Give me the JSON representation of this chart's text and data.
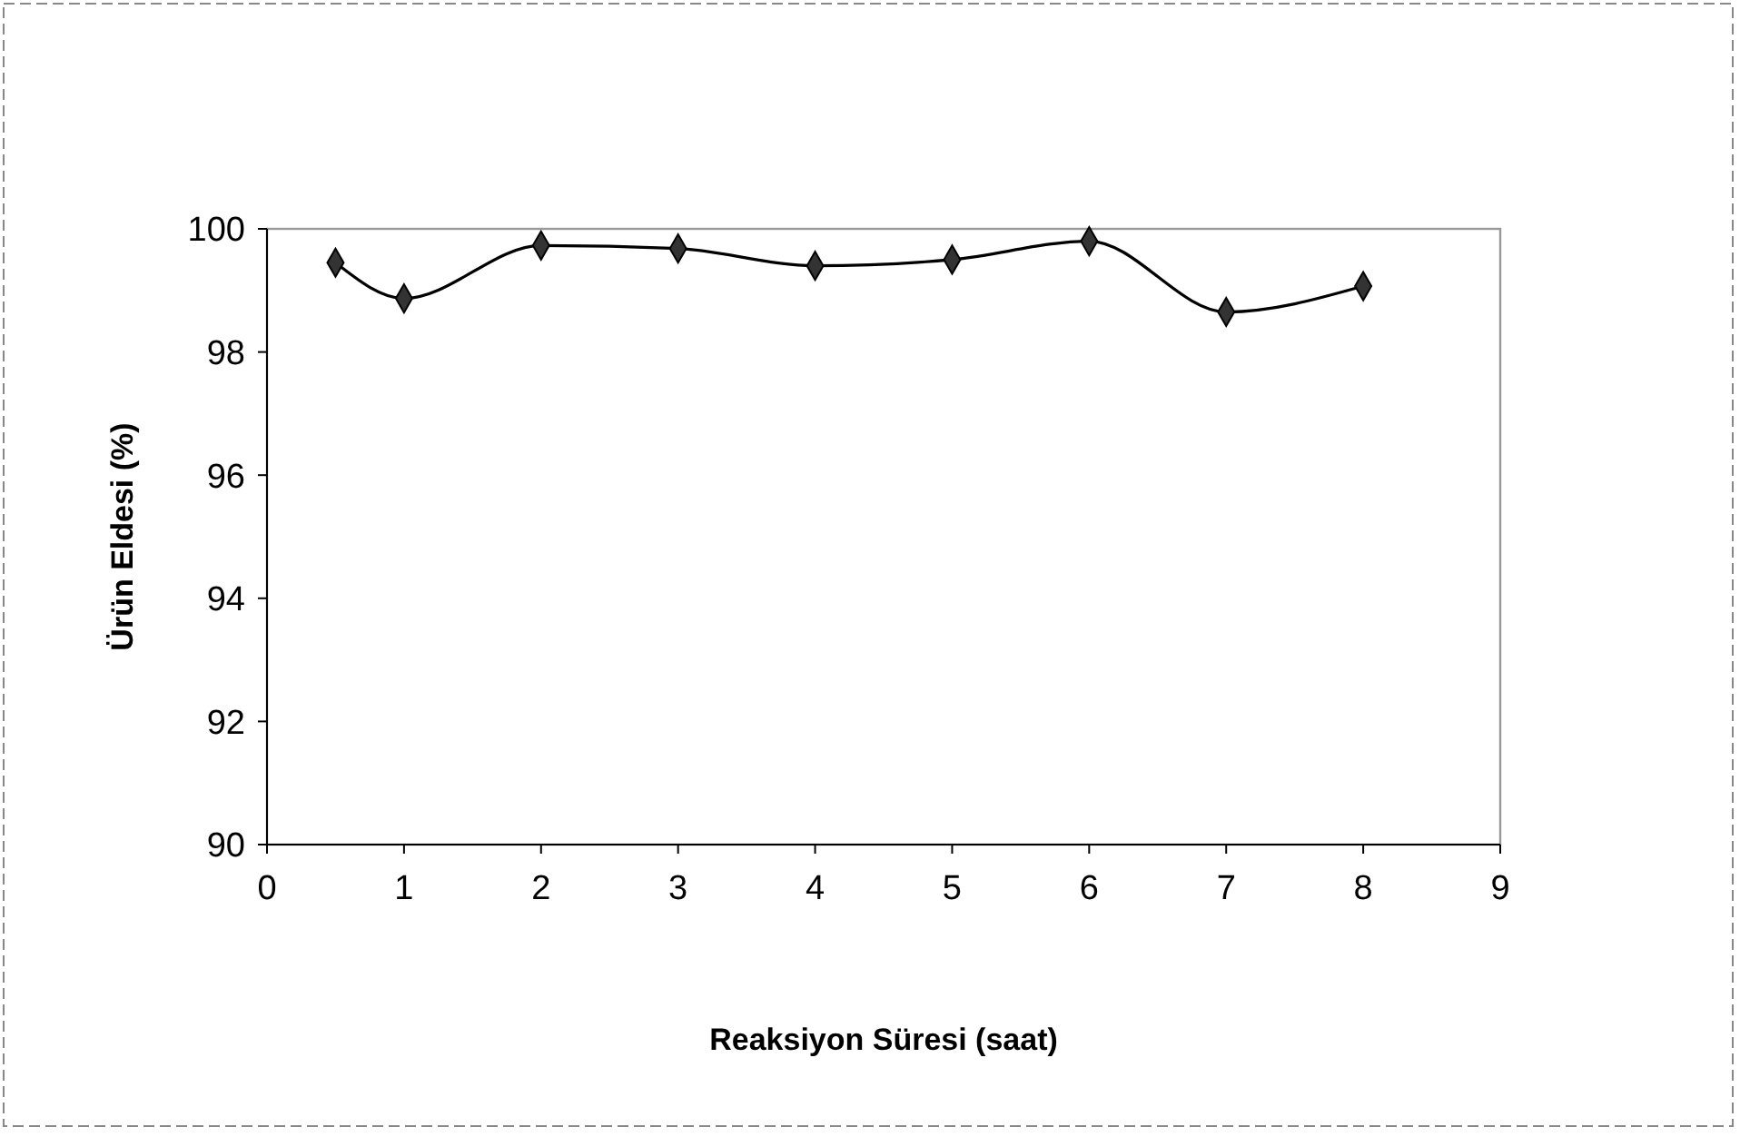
{
  "chart_data": {
    "type": "line",
    "xlabel": "Reaksiyon Süresi (saat)",
    "ylabel": "Ürün Eldesi (%)",
    "x": [
      0.5,
      1,
      2,
      3,
      4,
      5,
      6,
      7,
      8
    ],
    "series": [
      {
        "color": "#000000",
        "values": [
          99.45,
          98.87,
          99.73,
          99.68,
          99.4,
          99.5,
          99.8,
          98.65,
          99.07
        ]
      }
    ],
    "xlim": [
      0,
      9
    ],
    "xticks": [
      0,
      1,
      2,
      3,
      4,
      5,
      6,
      7,
      8,
      9
    ],
    "ylim": [
      90,
      100
    ],
    "yticks": [
      90,
      92,
      94,
      96,
      98,
      100
    ],
    "marker": "diamond",
    "line_style": "solid",
    "grid": false
  }
}
